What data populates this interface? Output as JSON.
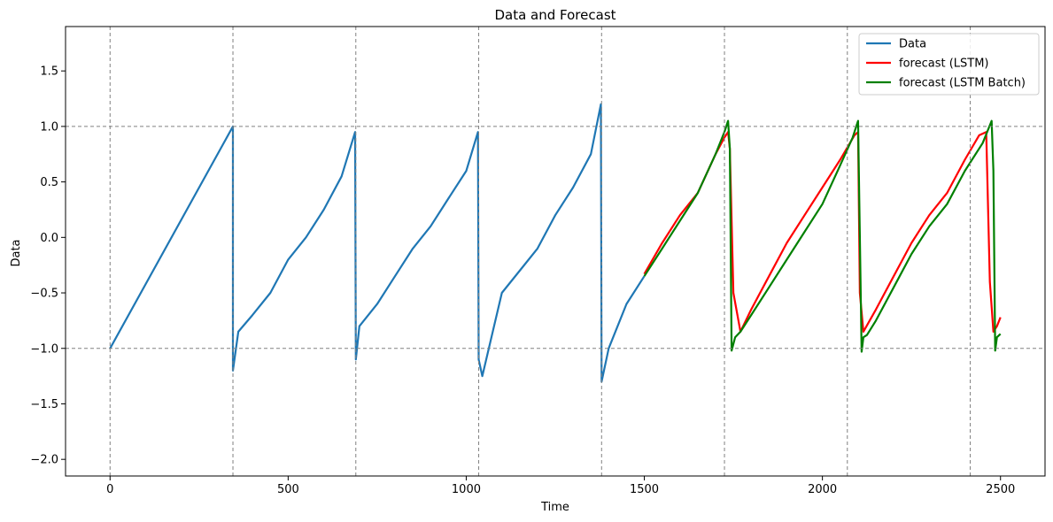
{
  "chart_data": {
    "type": "line",
    "title": "Data and Forecast",
    "xlabel": "Time",
    "ylabel": "Data",
    "xlim": [
      -125,
      2625
    ],
    "ylim": [
      -2.15,
      1.9
    ],
    "xticks": [
      0,
      500,
      1000,
      1500,
      2000,
      2500
    ],
    "xtick_labels": [
      "0",
      "500",
      "1000",
      "1500",
      "2000",
      "2500"
    ],
    "yticks": [
      -2.0,
      -1.5,
      -1.0,
      -0.5,
      0.0,
      0.5,
      1.0,
      1.5
    ],
    "ytick_labels": [
      "−2.0",
      "−1.5",
      "−1.0",
      "−0.5",
      "0.0",
      "0.5",
      "1.0",
      "1.5"
    ],
    "grid": false,
    "legend_position": "top-right",
    "reference_lines": {
      "vertical_x": [
        0,
        345,
        690,
        1035,
        1380,
        1725,
        2070,
        2415
      ],
      "horizontal_y": [
        1.0,
        -1.0
      ],
      "style": "dashed",
      "color": "#808080"
    },
    "series": [
      {
        "name": "Data",
        "color": "#1f77b4",
        "x": [
          0,
          345,
          345,
          360,
          400,
          450,
          500,
          550,
          600,
          650,
          688,
          690,
          700,
          750,
          800,
          850,
          900,
          950,
          1000,
          1033,
          1035,
          1045,
          1100,
          1150,
          1200,
          1250,
          1300,
          1350,
          1378,
          1380,
          1400,
          1450,
          1500
        ],
        "y": [
          -1.0,
          1.0,
          -1.2,
          -0.85,
          -0.7,
          -0.5,
          -0.2,
          0.0,
          0.25,
          0.55,
          0.95,
          -1.1,
          -0.8,
          -0.6,
          -0.35,
          -0.1,
          0.1,
          0.35,
          0.6,
          0.95,
          -1.1,
          -1.25,
          -0.5,
          -0.3,
          -0.1,
          0.2,
          0.45,
          0.75,
          1.2,
          -1.3,
          -1.0,
          -0.6,
          -0.35
        ]
      },
      {
        "name": "forecast (LSTM)",
        "color": "#ff0000",
        "x": [
          1500,
          1550,
          1600,
          1650,
          1700,
          1725,
          1735,
          1740,
          1750,
          1770,
          1800,
          1850,
          1900,
          1950,
          2000,
          2050,
          2090,
          2100,
          2105,
          2115,
          2150,
          2200,
          2250,
          2300,
          2350,
          2400,
          2440,
          2460,
          2470,
          2480,
          2490,
          2500
        ],
        "y": [
          -0.33,
          -0.05,
          0.2,
          0.4,
          0.75,
          0.9,
          0.95,
          0.8,
          -0.5,
          -0.85,
          -0.65,
          -0.35,
          -0.05,
          0.2,
          0.45,
          0.7,
          0.92,
          0.95,
          -0.5,
          -0.85,
          -0.65,
          -0.35,
          -0.05,
          0.2,
          0.4,
          0.7,
          0.92,
          0.95,
          -0.4,
          -0.85,
          -0.8,
          -0.72
        ]
      },
      {
        "name": "forecast (LSTM Batch)",
        "color": "#008000",
        "x": [
          1500,
          1550,
          1600,
          1650,
          1700,
          1725,
          1735,
          1740,
          1745,
          1755,
          1770,
          1800,
          1850,
          1900,
          1950,
          2000,
          2050,
          2085,
          2100,
          2110,
          2115,
          2125,
          2150,
          2200,
          2250,
          2300,
          2350,
          2400,
          2450,
          2475,
          2480,
          2485,
          2490,
          2500
        ],
        "y": [
          -0.35,
          -0.1,
          0.15,
          0.4,
          0.75,
          0.95,
          1.05,
          0.8,
          -1.02,
          -0.9,
          -0.85,
          -0.7,
          -0.45,
          -0.2,
          0.05,
          0.3,
          0.65,
          0.9,
          1.05,
          -1.03,
          -0.9,
          -0.88,
          -0.75,
          -0.45,
          -0.15,
          0.1,
          0.3,
          0.6,
          0.85,
          1.05,
          0.6,
          -1.02,
          -0.9,
          -0.87
        ]
      }
    ]
  }
}
